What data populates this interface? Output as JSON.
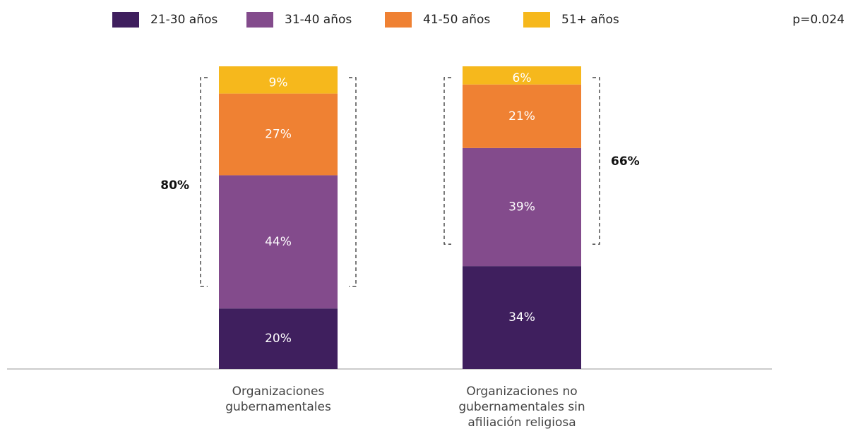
{
  "chart_data": {
    "type": "stacked_bar",
    "categories": [
      "Organizaciones gubernamentales",
      "Organizaciones no gubernamentales sin afiliación religiosa"
    ],
    "series": [
      {
        "name": "21-30 años",
        "color": "#3f1f5e",
        "values": [
          20,
          34
        ],
        "value_labels": [
          "20%",
          "34%"
        ]
      },
      {
        "name": "31-40 años",
        "color": "#834b8c",
        "values": [
          44,
          39
        ],
        "value_labels": [
          "44%",
          "39%"
        ]
      },
      {
        "name": "41-50 años",
        "color": "#ef8133",
        "values": [
          27,
          21
        ],
        "value_labels": [
          "27%",
          "21%"
        ]
      },
      {
        "name": "51+ años",
        "color": "#f6b81c",
        "values": [
          9,
          6
        ],
        "value_labels": [
          "9%",
          "6%"
        ]
      }
    ],
    "annotations": [
      "80%",
      "66%",
      "p=0.024"
    ],
    "legend": "top"
  }
}
